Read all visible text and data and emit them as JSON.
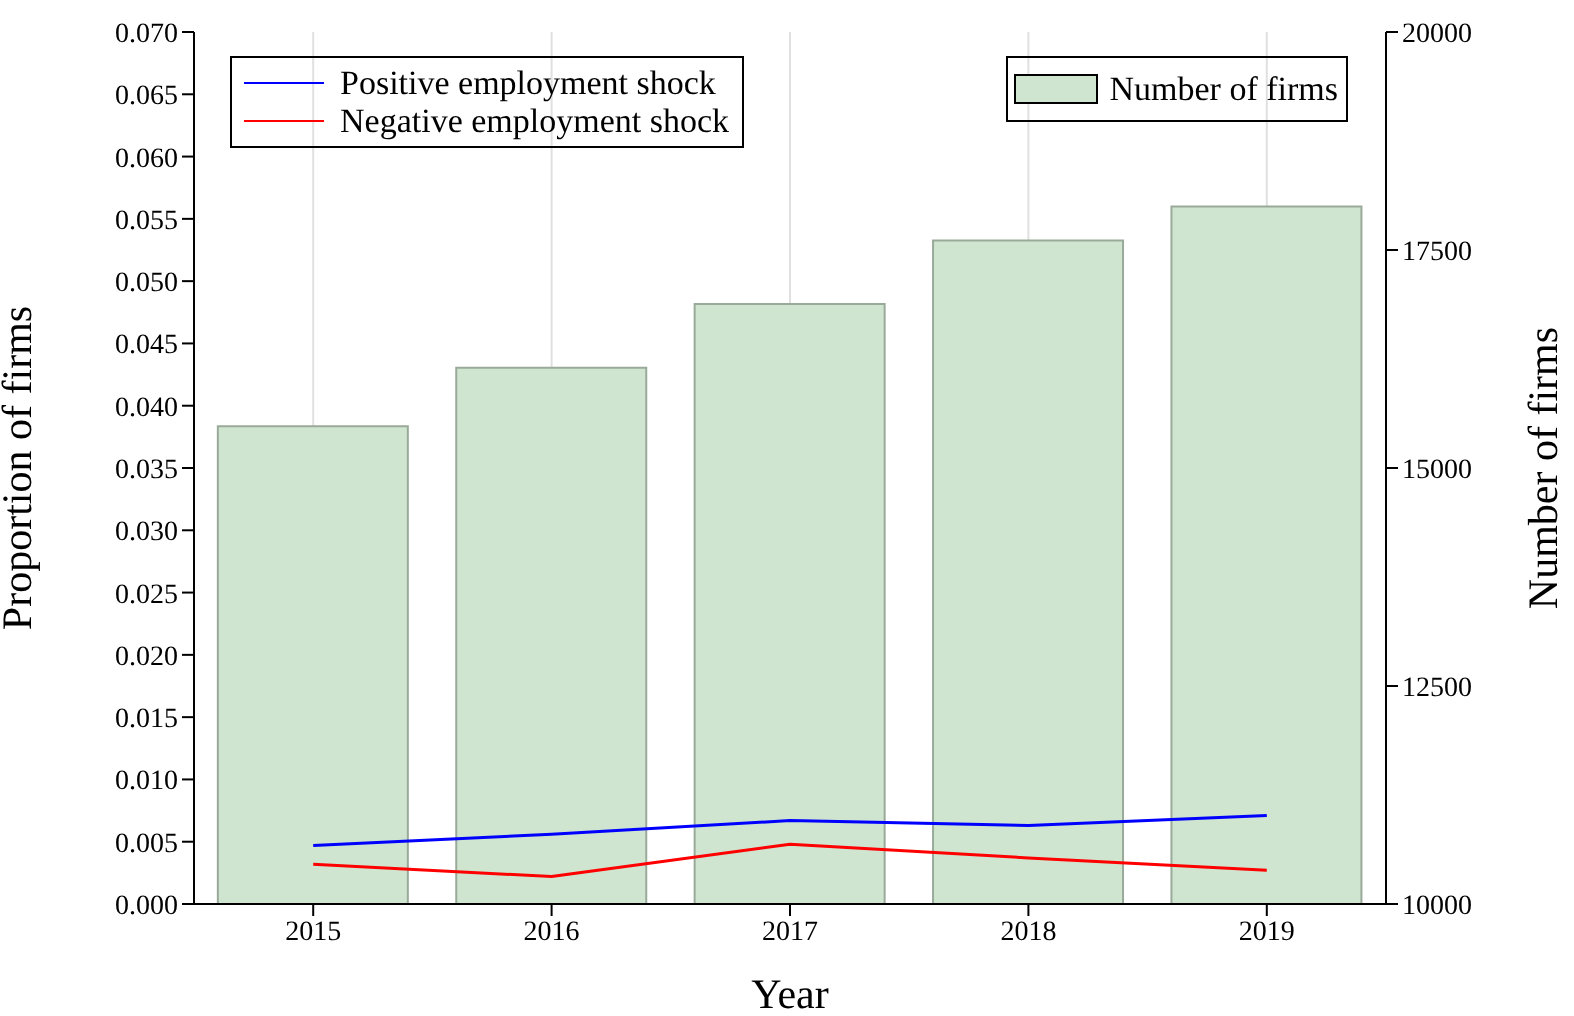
{
  "chart_data": {
    "type": "bar",
    "xlabel": "Year",
    "ylabel": "Proportion of firms",
    "y2label": "Number of firms",
    "categories": [
      "2015",
      "2016",
      "2017",
      "2018",
      "2019"
    ],
    "series": [
      {
        "name": "Number of firms",
        "axis": "y2",
        "color": "#cfe5cf",
        "values": [
          15480,
          16150,
          16880,
          17610,
          18000
        ]
      },
      {
        "name": "Positive employment shock",
        "type": "line",
        "color": "#0000ff",
        "values": [
          0.0047,
          0.0056,
          0.0067,
          0.0063,
          0.0071
        ]
      },
      {
        "name": "Negative employment shock",
        "type": "line",
        "color": "#ff0000",
        "values": [
          0.0032,
          0.0022,
          0.0048,
          0.0037,
          0.0027
        ]
      }
    ],
    "ylim": [
      0,
      0.07
    ],
    "yticks": [
      {
        "value": 0,
        "label": "0.000"
      },
      {
        "value": 0.005,
        "label": "0.005"
      },
      {
        "value": 0.01,
        "label": "0.010"
      },
      {
        "value": 0.015,
        "label": "0.015"
      },
      {
        "value": 0.02,
        "label": "0.020"
      },
      {
        "value": 0.025,
        "label": "0.025"
      },
      {
        "value": 0.03,
        "label": "0.030"
      },
      {
        "value": 0.035,
        "label": "0.035"
      },
      {
        "value": 0.04,
        "label": "0.040"
      },
      {
        "value": 0.045,
        "label": "0.045"
      },
      {
        "value": 0.05,
        "label": "0.050"
      },
      {
        "value": 0.055,
        "label": "0.055"
      },
      {
        "value": 0.06,
        "label": "0.060"
      },
      {
        "value": 0.065,
        "label": "0.065"
      },
      {
        "value": 0.07,
        "label": "0.070"
      }
    ],
    "y2lim": [
      10000,
      20000
    ],
    "y2ticks": [
      10000,
      12500,
      15000,
      17500,
      20000
    ],
    "grid": "x",
    "legend": "top",
    "marker": "none",
    "line_style": "solid"
  }
}
